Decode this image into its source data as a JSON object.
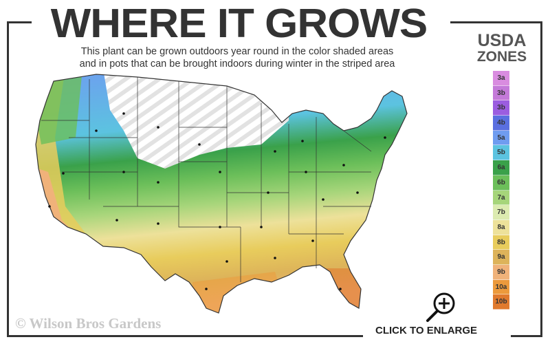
{
  "header": {
    "title": "WHERE IT GROWS",
    "subtitle_line1": "This plant can be grown outdoors year round in the color shaded areas",
    "subtitle_line2": "and in pots that can be brought indoors during winter in the striped area"
  },
  "legend": {
    "title_line1": "USDA",
    "title_line2": "ZONES",
    "zones": [
      {
        "label": "3a",
        "color": "#d98ce0"
      },
      {
        "label": "3b",
        "color": "#c47ad9"
      },
      {
        "label": "3b",
        "color": "#9b5de0"
      },
      {
        "label": "4b",
        "color": "#5a6fe0"
      },
      {
        "label": "5a",
        "color": "#6f9cf0"
      },
      {
        "label": "5b",
        "color": "#5cc3e0"
      },
      {
        "label": "6a",
        "color": "#3aa14a"
      },
      {
        "label": "6b",
        "color": "#6cbf5a"
      },
      {
        "label": "7a",
        "color": "#a6d57a"
      },
      {
        "label": "7b",
        "color": "#dcebb0"
      },
      {
        "label": "8a",
        "color": "#ede19a"
      },
      {
        "label": "8b",
        "color": "#e8cc5c"
      },
      {
        "label": "9a",
        "color": "#ddb35a"
      },
      {
        "label": "9b",
        "color": "#f0b27a"
      },
      {
        "label": "10a",
        "color": "#ec9a3c"
      },
      {
        "label": "10b",
        "color": "#e07a2e"
      }
    ]
  },
  "footer": {
    "copyright": "© Wilson Bros Gardens",
    "enlarge_label": "CLICK TO ENLARGE"
  }
}
